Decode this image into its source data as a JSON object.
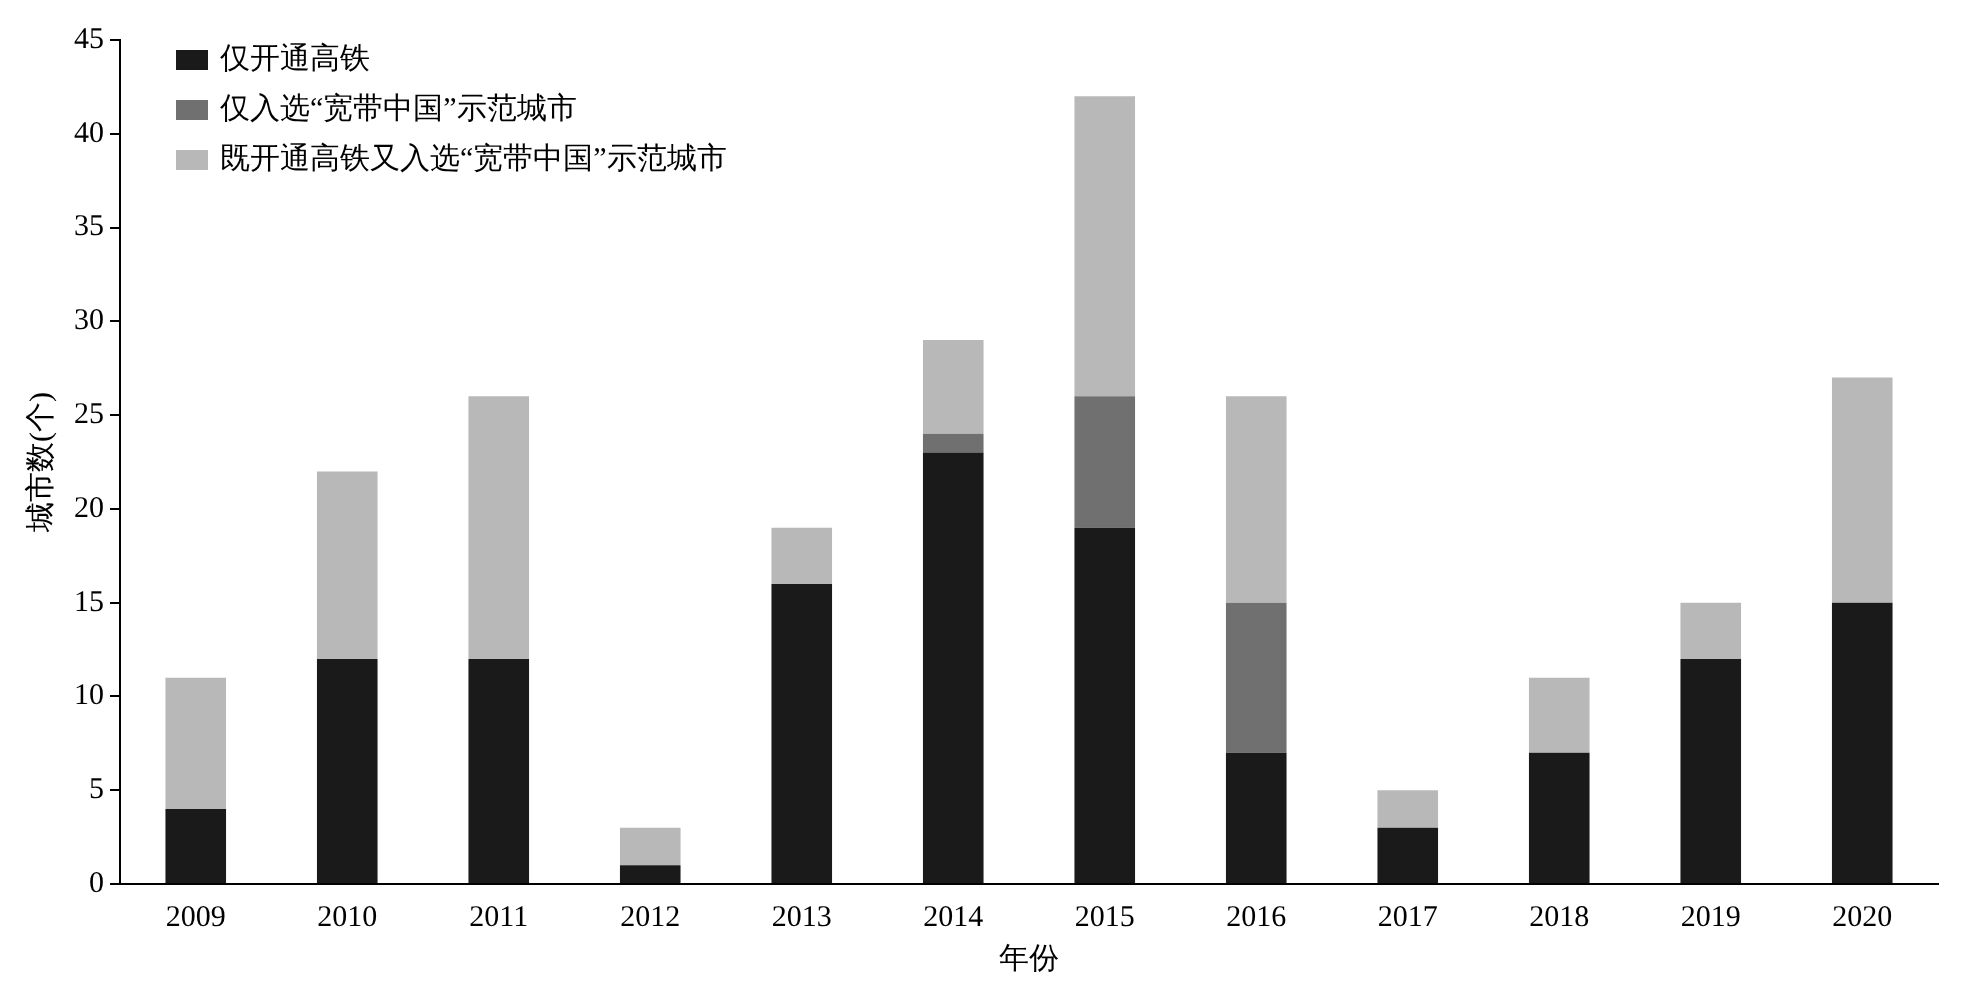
{
  "chart_data": {
    "type": "bar",
    "stacked": true,
    "xlabel": "年份",
    "ylabel": "城市数(个)",
    "categories": [
      "2009",
      "2010",
      "2011",
      "2012",
      "2013",
      "2014",
      "2015",
      "2016",
      "2017",
      "2018",
      "2019",
      "2020"
    ],
    "series": [
      {
        "name": "仅开通高铁",
        "color": "#1a1a1a",
        "values": [
          4,
          12,
          12,
          1,
          16,
          23,
          19,
          7,
          3,
          7,
          12,
          15
        ]
      },
      {
        "name": "仅入选“宽带中国”示范城市",
        "color": "#707070",
        "values": [
          0,
          0,
          0,
          0,
          0,
          1,
          7,
          8,
          0,
          0,
          0,
          0
        ]
      },
      {
        "name": "既开通高铁又入选“宽带中国”示范城市",
        "color": "#b8b8b8",
        "values": [
          7,
          10,
          14,
          2,
          3,
          5,
          16,
          11,
          2,
          4,
          3,
          12
        ]
      }
    ],
    "ylim": [
      0,
      45
    ],
    "yticks": [
      0,
      5,
      10,
      15,
      20,
      25,
      30,
      35,
      40,
      45
    ],
    "grid": false,
    "legend": "top left"
  }
}
